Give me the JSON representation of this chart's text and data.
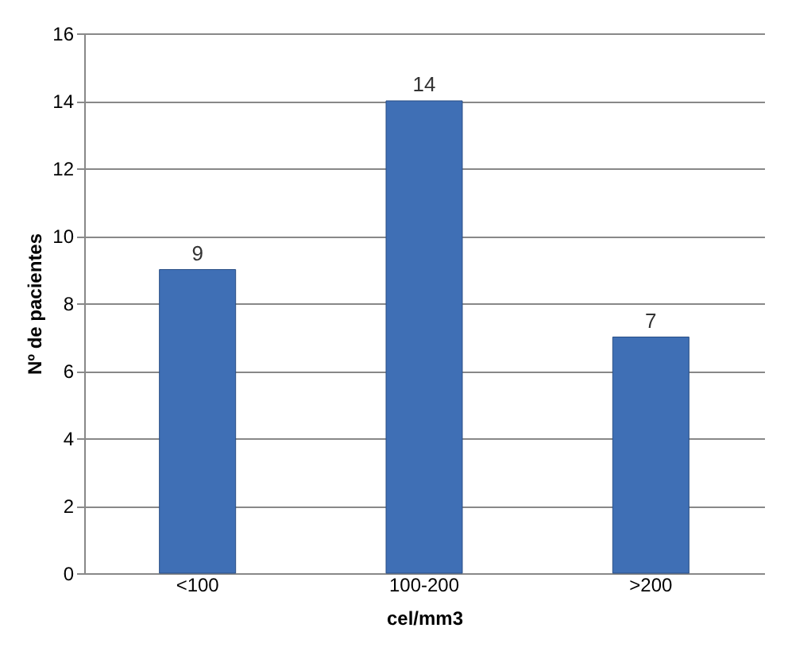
{
  "chart_data": {
    "type": "bar",
    "xlabel": "cel/mm3",
    "ylabel": "Nº de pacientes",
    "categories": [
      "<100",
      "100-200",
      ">200"
    ],
    "values": [
      9,
      14,
      7
    ],
    "color": "#3f6fb5",
    "ylim": [
      0,
      16
    ],
    "yticks": [
      0,
      2,
      4,
      6,
      8,
      10,
      12,
      14,
      16
    ],
    "grid": "y",
    "data_labels": true
  }
}
